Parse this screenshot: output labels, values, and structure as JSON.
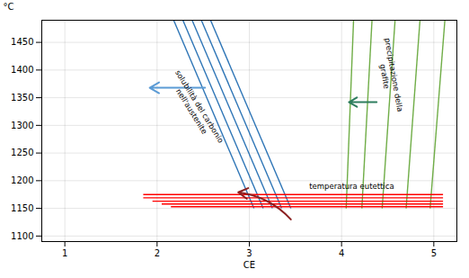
{
  "chart_data": {
    "type": "line",
    "xlabel": "CE",
    "ylabel": "°C",
    "xlim": [
      0.75,
      5.25
    ],
    "ylim": [
      1090,
      1490
    ],
    "xticks": [
      1,
      2,
      3,
      4,
      5
    ],
    "yticks": [
      1100,
      1150,
      1200,
      1250,
      1300,
      1350,
      1400,
      1450
    ],
    "grid": true,
    "lines": [
      {
        "color": "#2e75b6",
        "segments": [
          [
            [
              2.18,
              1490
            ],
            [
              3.05,
              1150
            ]
          ],
          [
            [
              2.28,
              1490
            ],
            [
              3.15,
              1150
            ]
          ],
          [
            [
              2.38,
              1490
            ],
            [
              3.25,
              1150
            ]
          ],
          [
            [
              2.48,
              1490
            ],
            [
              3.35,
              1150
            ]
          ],
          [
            [
              2.58,
              1490
            ],
            [
              3.45,
              1150
            ]
          ]
        ]
      },
      {
        "color": "#70ad47",
        "segments": [
          [
            [
              4.13,
              1490
            ],
            [
              4.05,
              1150
            ]
          ],
          [
            [
              4.33,
              1490
            ],
            [
              4.22,
              1150
            ]
          ],
          [
            [
              4.58,
              1490
            ],
            [
              4.44,
              1150
            ]
          ],
          [
            [
              4.85,
              1490
            ],
            [
              4.7,
              1150
            ]
          ],
          [
            [
              5.12,
              1490
            ],
            [
              4.96,
              1150
            ]
          ]
        ]
      },
      {
        "color": "#ff0000",
        "segments": [
          [
            [
              1.85,
              1175
            ],
            [
              5.1,
              1175
            ]
          ],
          [
            [
              1.85,
              1169
            ],
            [
              5.1,
              1169
            ]
          ],
          [
            [
              1.95,
              1163
            ],
            [
              5.1,
              1163
            ]
          ],
          [
            [
              2.05,
              1158
            ],
            [
              5.1,
              1158
            ]
          ],
          [
            [
              2.15,
              1153
            ],
            [
              5.1,
              1153
            ]
          ]
        ]
      }
    ],
    "arrows": [
      {
        "color": "#5b9bd5",
        "from": [
          2.52,
          1368
        ],
        "to": [
          1.92,
          1368
        ]
      },
      {
        "color": "#2e7d5e",
        "from": [
          4.38,
          1342
        ],
        "to": [
          4.08,
          1342
        ]
      },
      {
        "color": "#8b2020",
        "from": [
          3.45,
          1130
        ],
        "to": [
          2.88,
          1179
        ]
      }
    ],
    "annotations": [
      {
        "text": "solubilità del carbonio\nnell'austenite",
        "x": 2.42,
        "y": 1330
      },
      {
        "text": "precipitazione della\ngrafite",
        "x": 4.52,
        "y": 1390
      },
      {
        "text": "temperatura eutettica",
        "x": 3.65,
        "y": 1185
      }
    ]
  }
}
